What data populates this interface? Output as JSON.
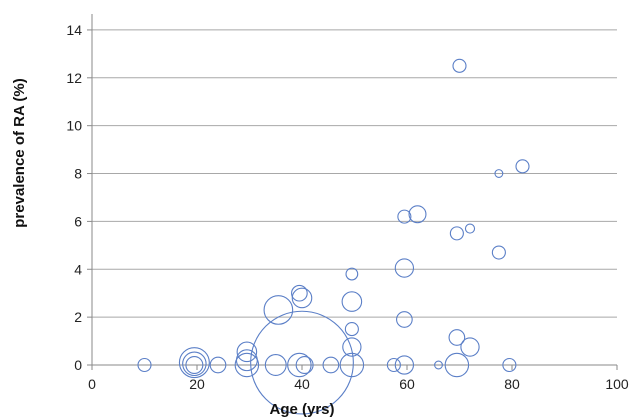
{
  "chart_data": {
    "type": "scatter",
    "title": "",
    "xlabel": "Age  (yrs)",
    "ylabel": "prevalence of RA (%)",
    "xlim": [
      0,
      100
    ],
    "ylim": [
      0,
      15
    ],
    "xticks": [
      0,
      20,
      40,
      60,
      80,
      100
    ],
    "yticks": [
      0,
      2,
      4,
      6,
      8,
      10,
      12,
      14
    ],
    "grid": "horizontal",
    "legend": "none",
    "marker": "open-circle-sized-by-sample",
    "colors": {
      "marker": "#5b7fc7",
      "grid": "#a8a8a8",
      "axis": "#8a8a8a"
    },
    "points": [
      {
        "x": 70,
        "y": 12.5,
        "size": 1
      },
      {
        "x": 82,
        "y": 8.3,
        "size": 1
      },
      {
        "x": 77.5,
        "y": 8.0,
        "size": 0.6
      },
      {
        "x": 62,
        "y": 6.3,
        "size": 1.3
      },
      {
        "x": 59.5,
        "y": 6.2,
        "size": 1
      },
      {
        "x": 72,
        "y": 5.7,
        "size": 0.7
      },
      {
        "x": 69.5,
        "y": 5.5,
        "size": 1
      },
      {
        "x": 77.5,
        "y": 4.7,
        "size": 1
      },
      {
        "x": 59.5,
        "y": 4.05,
        "size": 1.4
      },
      {
        "x": 49.5,
        "y": 3.8,
        "size": 0.9
      },
      {
        "x": 39.5,
        "y": 3.0,
        "size": 1.2
      },
      {
        "x": 40,
        "y": 2.8,
        "size": 1.5
      },
      {
        "x": 49.5,
        "y": 2.65,
        "size": 1.5
      },
      {
        "x": 35.5,
        "y": 2.3,
        "size": 2.2
      },
      {
        "x": 59.5,
        "y": 1.9,
        "size": 1.2
      },
      {
        "x": 49.5,
        "y": 1.5,
        "size": 1
      },
      {
        "x": 69.5,
        "y": 1.15,
        "size": 1.2
      },
      {
        "x": 49.5,
        "y": 0.75,
        "size": 1.4
      },
      {
        "x": 72,
        "y": 0.75,
        "size": 1.4
      },
      {
        "x": 29.5,
        "y": 0.55,
        "size": 1.5
      },
      {
        "x": 29.5,
        "y": 0.2,
        "size": 1.6
      },
      {
        "x": 40,
        "y": 0.1,
        "size": 7.9
      },
      {
        "x": 10,
        "y": 0.0,
        "size": 1
      },
      {
        "x": 19.5,
        "y": 0.1,
        "size": 2.3
      },
      {
        "x": 19.5,
        "y": 0.05,
        "size": 1.8
      },
      {
        "x": 19.5,
        "y": 0.0,
        "size": 1.3
      },
      {
        "x": 24,
        "y": 0.0,
        "size": 1.2
      },
      {
        "x": 29.5,
        "y": 0.0,
        "size": 1.8
      },
      {
        "x": 35,
        "y": 0.0,
        "size": 1.6
      },
      {
        "x": 39.5,
        "y": 0.0,
        "size": 1.8
      },
      {
        "x": 40.5,
        "y": 0.0,
        "size": 1.3
      },
      {
        "x": 45.5,
        "y": 0.0,
        "size": 1.2
      },
      {
        "x": 49.5,
        "y": 0.0,
        "size": 1.8
      },
      {
        "x": 57.5,
        "y": 0.0,
        "size": 1
      },
      {
        "x": 59.5,
        "y": 0.0,
        "size": 1.4
      },
      {
        "x": 66,
        "y": 0.0,
        "size": 0.6
      },
      {
        "x": 69.5,
        "y": 0.0,
        "size": 1.8
      },
      {
        "x": 79.5,
        "y": 0.0,
        "size": 1
      }
    ]
  }
}
